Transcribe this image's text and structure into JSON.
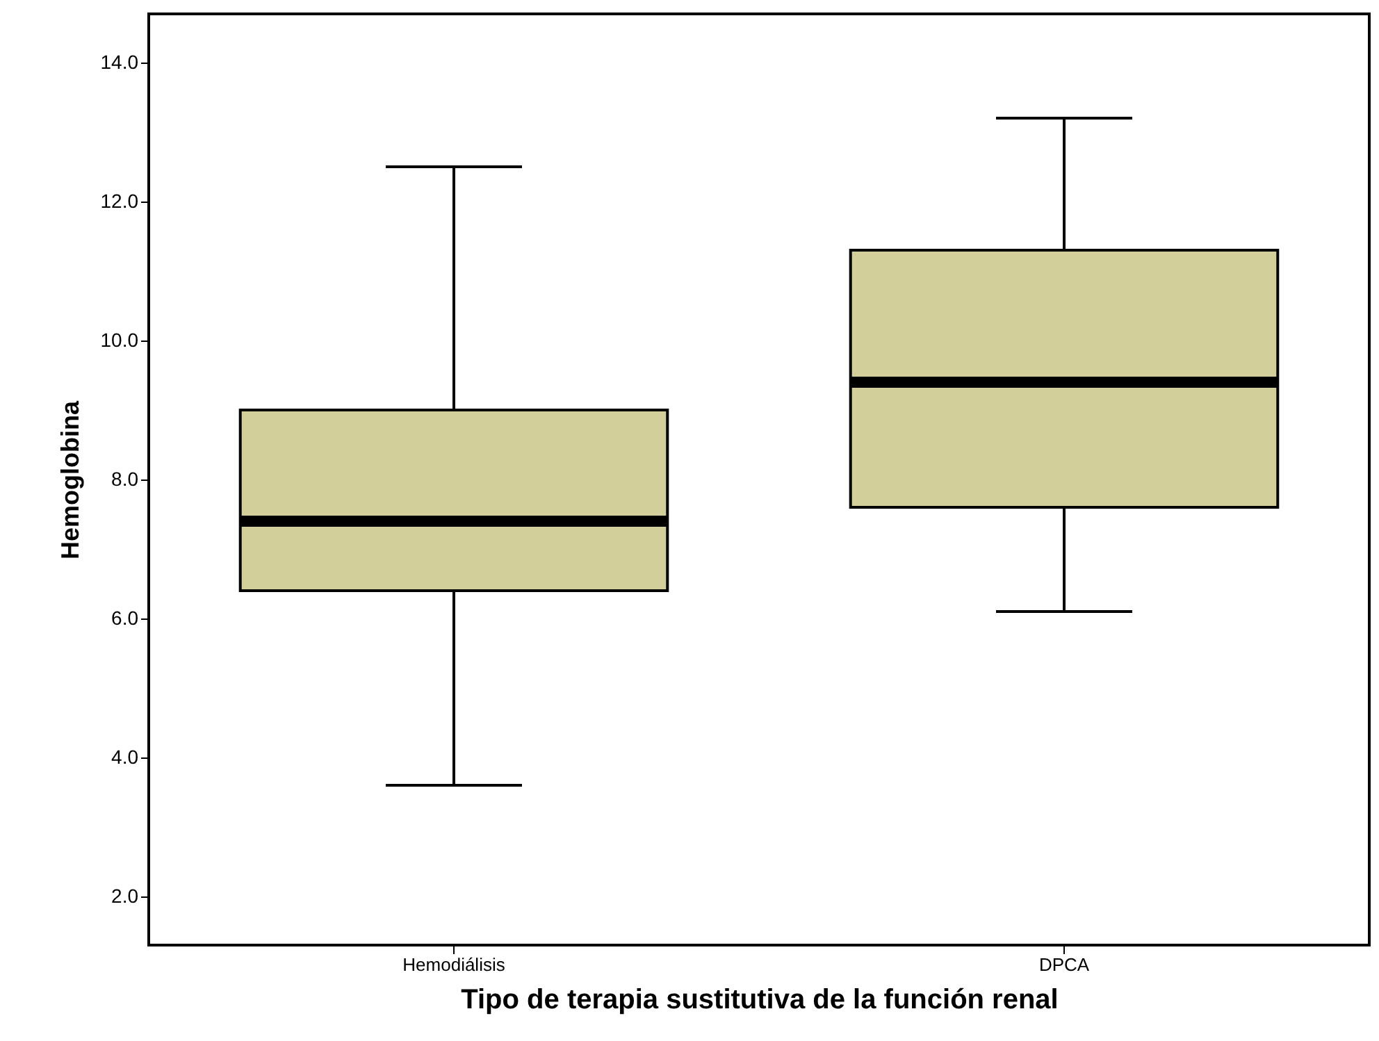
{
  "chart_data": {
    "type": "box",
    "xlabel": "Tipo de terapia sustitutiva de la  función  renal",
    "ylabel": "Hemoglobina",
    "categories": [
      "Hemodiálisis",
      "DPCA"
    ],
    "boxes": [
      {
        "low": 3.6,
        "q1": 6.4,
        "median": 7.4,
        "q3": 9.0,
        "high": 12.5
      },
      {
        "low": 6.1,
        "q1": 7.6,
        "median": 9.4,
        "q3": 11.3,
        "high": 13.2
      }
    ],
    "color": "#d3cf9a",
    "ylim": [
      1.3,
      14.7
    ],
    "yticks": [
      {
        "value": 2,
        "label": "2.0"
      },
      {
        "value": 4,
        "label": "4.0"
      },
      {
        "value": 6,
        "label": "6.0"
      },
      {
        "value": 8,
        "label": "8.0"
      },
      {
        "value": 10,
        "label": "10.0"
      },
      {
        "value": 12,
        "label": "12.0"
      },
      {
        "value": 14,
        "label": "14.0"
      }
    ],
    "grid": false
  }
}
